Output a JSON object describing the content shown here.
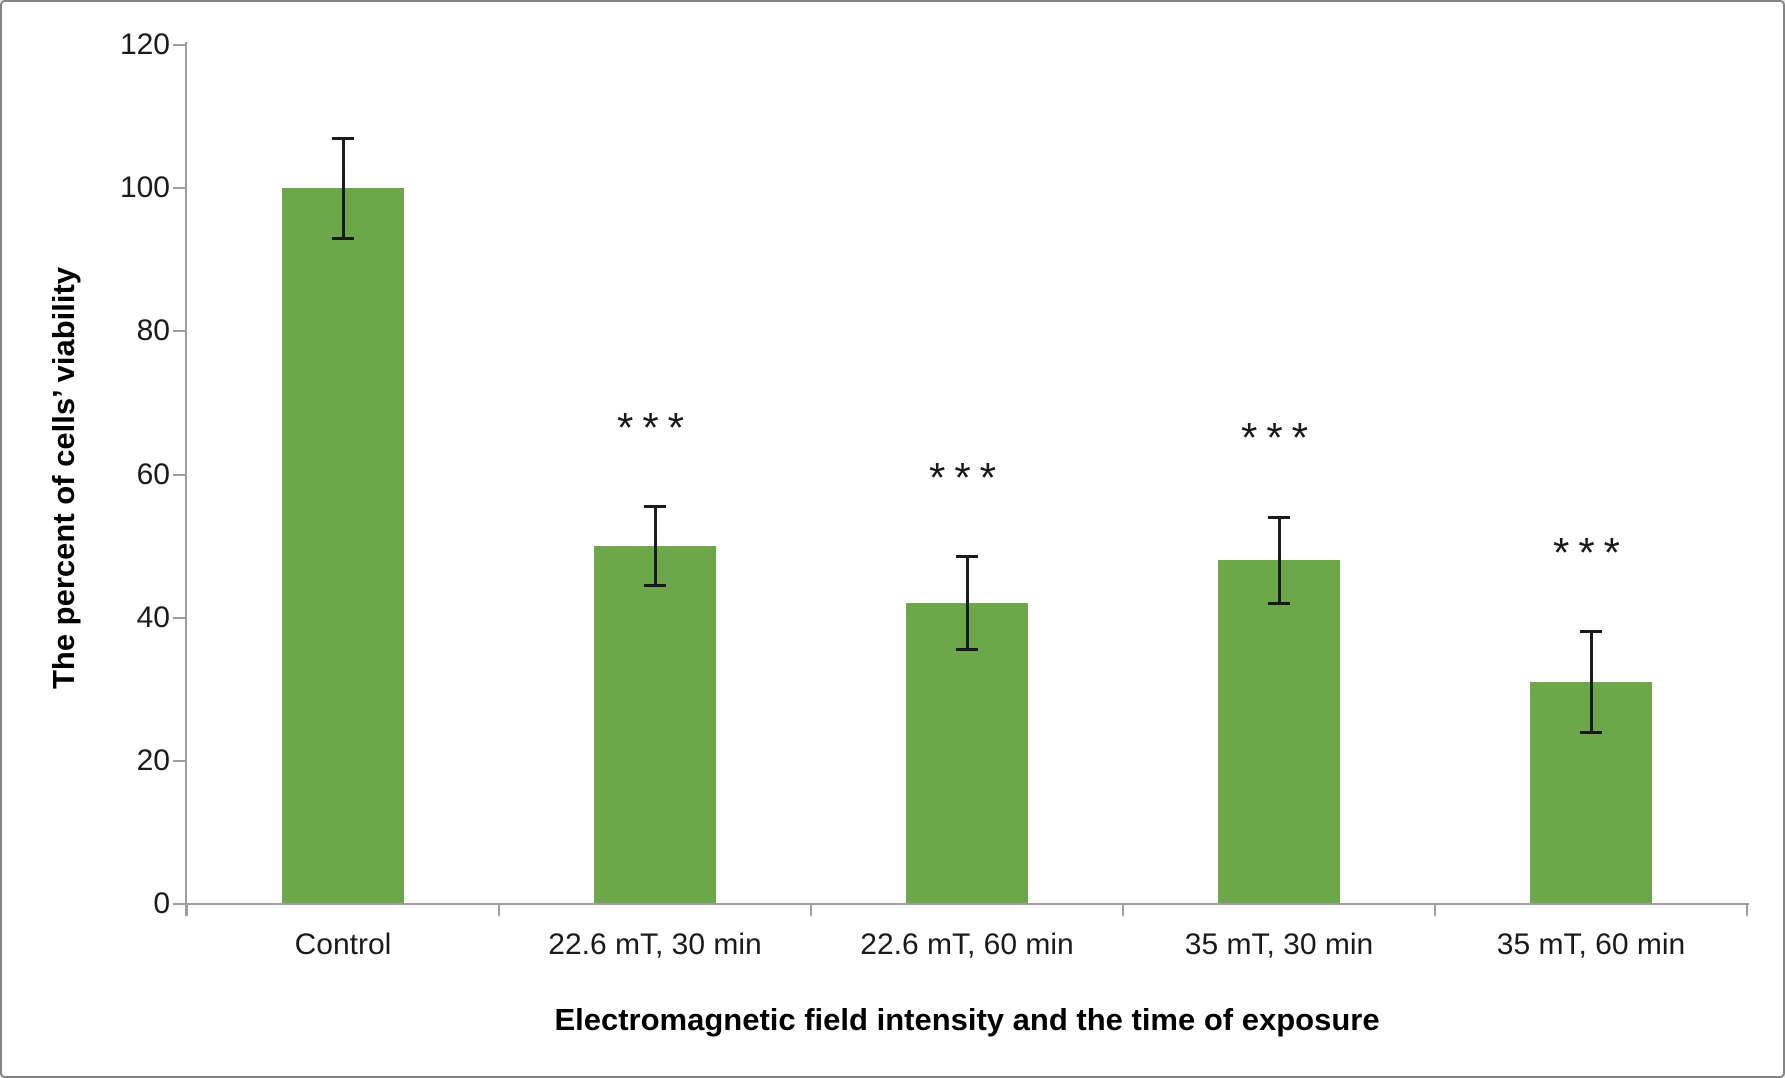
{
  "figure": {
    "background_color": "#ffffff",
    "border_color": "#848484"
  },
  "chart_data": {
    "type": "bar",
    "title": "",
    "xlabel": "Electromagnetic field intensity and the time of exposure",
    "ylabel": "The percent of cells’ viability",
    "categories": [
      "Control",
      "22.6 mT, 30 min",
      "22.6 mT, 60 min",
      "35 mT, 30 min",
      "35 mT, 60 min"
    ],
    "values": [
      100,
      50,
      42,
      48,
      31
    ],
    "error_bars": [
      7,
      5.5,
      6.5,
      6,
      7
    ],
    "annotations": [
      "",
      "***",
      "***",
      "***",
      "***"
    ],
    "ylim": [
      0,
      120
    ],
    "yticks": [
      0,
      20,
      40,
      60,
      80,
      100,
      120
    ],
    "grid": false,
    "legend": "none",
    "bar_color": "#6CA84A",
    "axis_color": "#9e9e9e",
    "error_bar_color": "#1a1a1a",
    "annotation_color": "#1a1a1a",
    "tick_label_color": "#1a1a1a",
    "title_color": "#000000"
  }
}
